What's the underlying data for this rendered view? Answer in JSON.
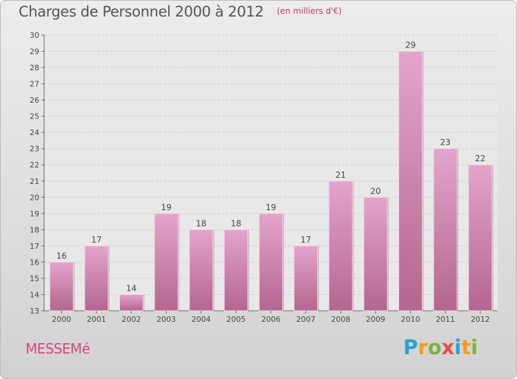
{
  "header": {
    "title": "Charges de Personnel 2000 à 2012",
    "subtitle": "(en milliers d'€)"
  },
  "footer": {
    "town": "MESSEMé",
    "brand": "Proxiti"
  },
  "colors": {
    "bar_top": "#e4a4cb",
    "bar_bottom": "#b3668f",
    "title_text": "#555555",
    "accent": "#c23a6f"
  },
  "chart_data": {
    "type": "bar",
    "title": "Charges de Personnel 2000 à 2012",
    "subtitle": "(en milliers d'€)",
    "xlabel": "",
    "ylabel": "",
    "categories": [
      "2000",
      "2001",
      "2002",
      "2003",
      "2004",
      "2005",
      "2006",
      "2007",
      "2008",
      "2009",
      "2010",
      "2011",
      "2012"
    ],
    "values": [
      16,
      17,
      14,
      19,
      18,
      18,
      19,
      17,
      21,
      20,
      29,
      23,
      22
    ],
    "ylim": [
      13,
      30
    ],
    "yticks": [
      13,
      14,
      15,
      16,
      17,
      18,
      19,
      20,
      21,
      22,
      23,
      24,
      25,
      26,
      27,
      28,
      29,
      30
    ],
    "grid": "horizontal dashed",
    "legend": "none",
    "data_labels": true
  }
}
